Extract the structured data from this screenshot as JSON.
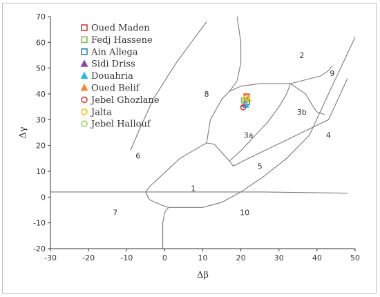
{
  "chart_data": {
    "type": "scatter",
    "title": "",
    "xlabel": "Δβ",
    "ylabel": "Δγ",
    "xlim": [
      -30,
      50
    ],
    "ylim": [
      -20,
      70
    ],
    "xticks": [
      -30,
      -20,
      -10,
      0,
      10,
      20,
      30,
      40,
      50
    ],
    "yticks": [
      -20,
      -10,
      0,
      10,
      20,
      30,
      40,
      50,
      60,
      70
    ],
    "grid": false,
    "legend_position": "top-left",
    "series": [
      {
        "name": "Oued Maden",
        "marker": "square",
        "color": "#e53935",
        "points": [
          [
            21.5,
            39.0
          ]
        ]
      },
      {
        "name": "Fedj Hassene",
        "marker": "square",
        "color": "#7cc242",
        "points": [
          [
            20.8,
            37.5
          ]
        ]
      },
      {
        "name": "Ain Allega",
        "marker": "square",
        "color": "#1e88c8",
        "points": [
          [
            21.6,
            36.8
          ]
        ]
      },
      {
        "name": "Sidi Driss",
        "marker": "triangle",
        "color": "#8e44ad",
        "points": [
          [
            21.0,
            36.0
          ]
        ]
      },
      {
        "name": "Douahria",
        "marker": "triangle",
        "color": "#29b6e8",
        "points": [
          [
            21.3,
            35.7
          ]
        ]
      },
      {
        "name": "Oued Belif",
        "marker": "triangle",
        "color": "#f0892f",
        "points": [
          [
            21.8,
            38.2
          ]
        ]
      },
      {
        "name": "Jebel Ghozlane",
        "marker": "circle",
        "color": "#e53935",
        "points": [
          [
            20.6,
            34.8
          ]
        ]
      },
      {
        "name": "Jalta",
        "marker": "circle",
        "color": "#f4c20d",
        "points": [
          [
            21.4,
            38.5
          ]
        ]
      },
      {
        "name": "Jebel Hallouf",
        "marker": "circle",
        "color": "#9ccc65",
        "points": [
          [
            21.2,
            37.2
          ]
        ]
      }
    ],
    "region_labels": [
      {
        "text": "1",
        "x": 7.5,
        "y": 3.5
      },
      {
        "text": "2",
        "x": 36,
        "y": 55
      },
      {
        "text": "3a",
        "x": 22,
        "y": 24
      },
      {
        "text": "3b",
        "x": 36,
        "y": 33
      },
      {
        "text": "4",
        "x": 43,
        "y": 24
      },
      {
        "text": "5",
        "x": 25,
        "y": 12
      },
      {
        "text": "6",
        "x": -7,
        "y": 16
      },
      {
        "text": "7",
        "x": -13,
        "y": -6
      },
      {
        "text": "8",
        "x": 11,
        "y": 40
      },
      {
        "text": "9",
        "x": 44,
        "y": 48
      },
      {
        "text": "10",
        "x": 21,
        "y": -6
      }
    ],
    "boundaries": [
      [
        [
          -30,
          2
        ],
        [
          -5,
          2
        ],
        [
          -4,
          -1
        ],
        [
          -1,
          -3
        ],
        [
          1,
          -4
        ],
        [
          10,
          -4
        ],
        [
          15,
          -2
        ],
        [
          20,
          2
        ],
        [
          26,
          8
        ],
        [
          32,
          15
        ],
        [
          38,
          24
        ],
        [
          43,
          40
        ],
        [
          50,
          62
        ]
      ],
      [
        [
          -5,
          2
        ],
        [
          25,
          2
        ],
        [
          48,
          1.5
        ]
      ],
      [
        [
          -4,
          -1
        ],
        [
          -5,
          2
        ],
        [
          -4,
          4
        ],
        [
          4,
          15
        ],
        [
          11,
          21
        ],
        [
          13,
          20.5
        ],
        [
          17,
          14
        ],
        [
          18,
          12
        ],
        [
          22,
          15
        ],
        [
          29,
          20
        ],
        [
          36,
          25
        ],
        [
          43,
          30
        ],
        [
          48,
          46
        ]
      ],
      [
        [
          1,
          -4
        ],
        [
          0,
          -6
        ],
        [
          -0.5,
          -10
        ],
        [
          -0.5,
          -20
        ]
      ],
      [
        [
          -9,
          18
        ],
        [
          -7,
          25
        ],
        [
          -3,
          38
        ],
        [
          3,
          52
        ],
        [
          7,
          60
        ],
        [
          11,
          68
        ]
      ],
      [
        [
          11,
          21
        ],
        [
          12,
          30
        ],
        [
          15,
          38
        ],
        [
          17,
          41
        ],
        [
          19,
          45
        ],
        [
          20,
          52
        ],
        [
          20,
          60
        ],
        [
          19,
          70
        ]
      ],
      [
        [
          17,
          41
        ],
        [
          20,
          43
        ],
        [
          25,
          44
        ],
        [
          33,
          44
        ],
        [
          41,
          47
        ],
        [
          43,
          49
        ],
        [
          44,
          51
        ]
      ],
      [
        [
          17,
          14
        ],
        [
          20,
          18
        ],
        [
          27,
          29
        ],
        [
          30,
          35
        ],
        [
          32,
          40
        ],
        [
          33,
          44
        ]
      ],
      [
        [
          33,
          44
        ],
        [
          37,
          40
        ],
        [
          39,
          35
        ],
        [
          40,
          33
        ],
        [
          42,
          32
        ]
      ]
    ]
  }
}
